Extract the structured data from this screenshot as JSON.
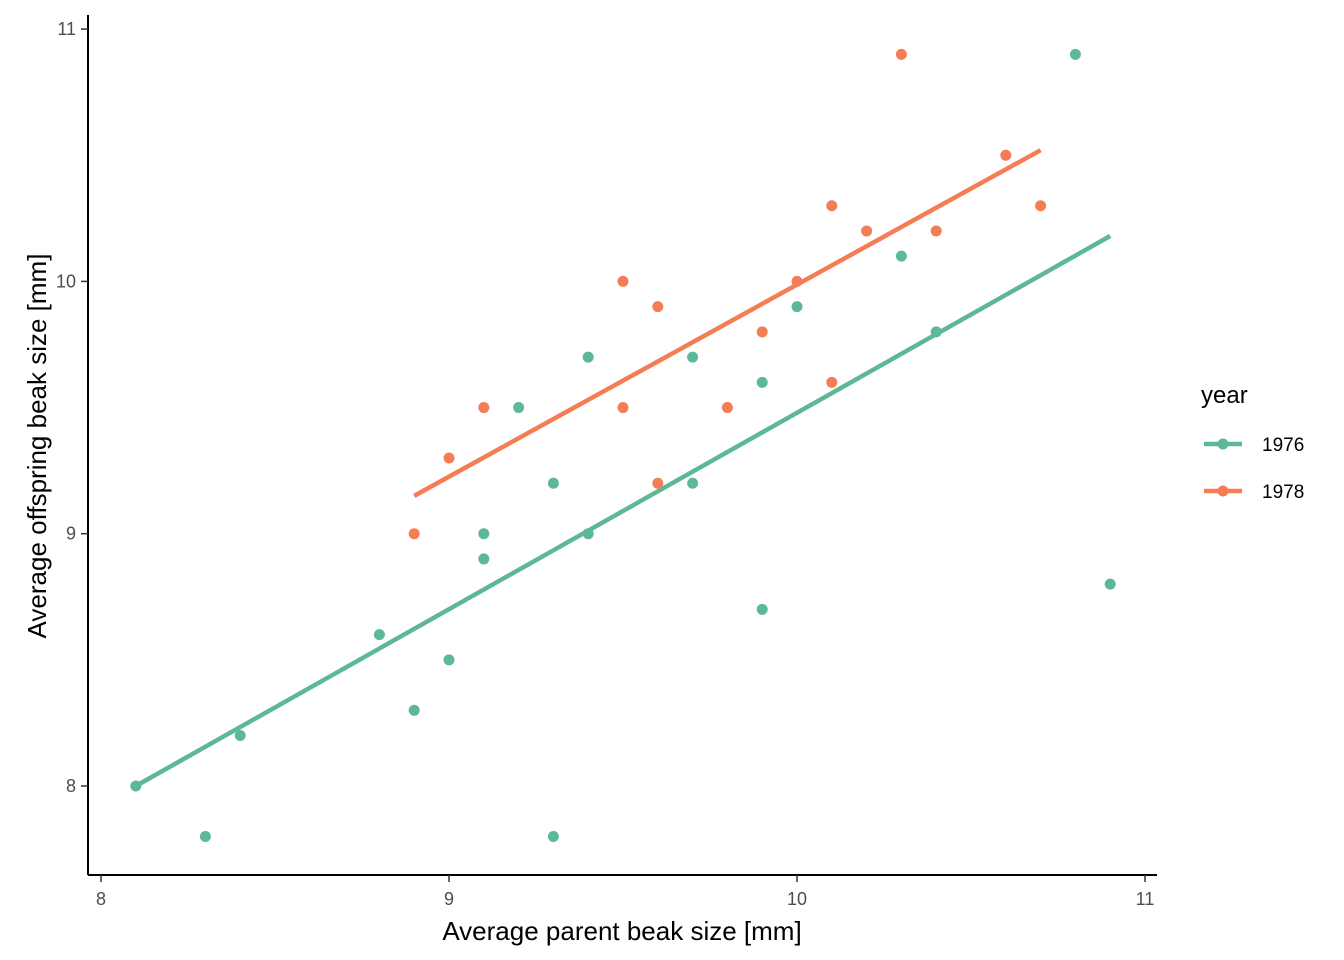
{
  "chart_data": {
    "type": "scatter",
    "title": "",
    "xlabel": "Average parent beak size [mm]",
    "ylabel": "Average offspring beak size [mm]",
    "xlim": [
      7.96,
      11.05
    ],
    "ylim": [
      7.65,
      11.05
    ],
    "x_ticks": [
      8,
      9,
      10,
      11
    ],
    "y_ticks": [
      8,
      9,
      10,
      11
    ],
    "x_tick_labels": [
      "8",
      "9",
      "10",
      "11"
    ],
    "y_tick_labels": [
      "8",
      "9",
      "10",
      "11"
    ],
    "grid": false,
    "legend": {
      "title": "year",
      "placement": "right"
    },
    "series": [
      {
        "name": "1976",
        "color": "#5DB896",
        "points": [
          [
            8.1,
            8.0
          ],
          [
            8.3,
            7.8
          ],
          [
            8.4,
            8.2
          ],
          [
            8.8,
            8.6
          ],
          [
            8.9,
            8.3
          ],
          [
            9.0,
            8.5
          ],
          [
            9.1,
            9.0
          ],
          [
            9.1,
            8.9
          ],
          [
            9.2,
            9.5
          ],
          [
            9.3,
            9.2
          ],
          [
            9.3,
            7.8
          ],
          [
            9.4,
            9.7
          ],
          [
            9.4,
            9.0
          ],
          [
            9.7,
            9.7
          ],
          [
            9.7,
            9.2
          ],
          [
            9.9,
            9.6
          ],
          [
            9.9,
            8.7
          ],
          [
            10.0,
            9.9
          ],
          [
            10.3,
            10.1
          ],
          [
            10.4,
            9.8
          ],
          [
            10.8,
            10.9
          ],
          [
            10.9,
            8.8
          ]
        ],
        "fit": [
          [
            8.1,
            8.0
          ],
          [
            10.9,
            10.18
          ]
        ]
      },
      {
        "name": "1978",
        "color": "#F47D56",
        "points": [
          [
            8.9,
            9.0
          ],
          [
            9.0,
            9.3
          ],
          [
            9.1,
            9.5
          ],
          [
            9.5,
            10.0
          ],
          [
            9.5,
            9.5
          ],
          [
            9.6,
            9.9
          ],
          [
            9.6,
            9.2
          ],
          [
            9.8,
            9.5
          ],
          [
            9.9,
            9.8
          ],
          [
            10.0,
            10.0
          ],
          [
            10.1,
            10.3
          ],
          [
            10.1,
            9.6
          ],
          [
            10.2,
            10.2
          ],
          [
            10.3,
            10.9
          ],
          [
            10.4,
            10.2
          ],
          [
            10.6,
            10.5
          ],
          [
            10.7,
            10.3
          ]
        ],
        "fit": [
          [
            8.9,
            9.15
          ],
          [
            10.7,
            10.52
          ]
        ]
      }
    ]
  }
}
